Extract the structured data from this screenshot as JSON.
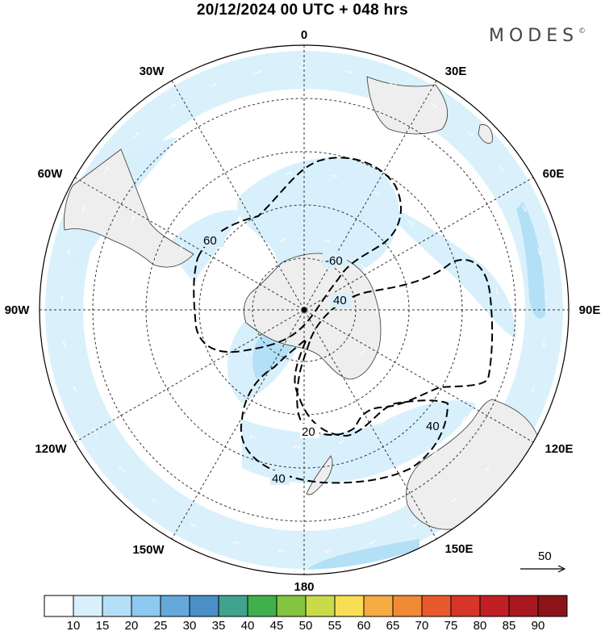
{
  "title": "20/12/2024  00 UTC  + 048 hrs",
  "brand": "MODES",
  "brand_mark": "©",
  "longitude_labels": {
    "l0": "0",
    "l30e": "30E",
    "l60e": "60E",
    "l90e": "90E",
    "l120e": "120E",
    "l150e": "150E",
    "l180": "180",
    "l150w": "150W",
    "l120w": "120W",
    "l90w": "90W",
    "l60w": "60W",
    "l30w": "30W"
  },
  "contour_labels": {
    "c60a": "60",
    "c60b": "-60",
    "c40a": "40",
    "c40b": "40",
    "c40c": "40",
    "c20": "20"
  },
  "wind_reference": {
    "value": "50"
  },
  "colorbar": {
    "labels": [
      "10",
      "15",
      "20",
      "25",
      "30",
      "35",
      "40",
      "45",
      "50",
      "55",
      "60",
      "65",
      "70",
      "75",
      "80",
      "85",
      "90"
    ],
    "colors": [
      "#ffffff",
      "#d8f0fc",
      "#b4e0f7",
      "#8ecaf0",
      "#65a9dc",
      "#4a8fc6",
      "#3fa38e",
      "#3fb04c",
      "#84c441",
      "#c8dc4a",
      "#f8de54",
      "#f6aa42",
      "#f08a36",
      "#e85a2c",
      "#d63628",
      "#c01f24",
      "#a81820",
      "#8c1418"
    ]
  }
}
